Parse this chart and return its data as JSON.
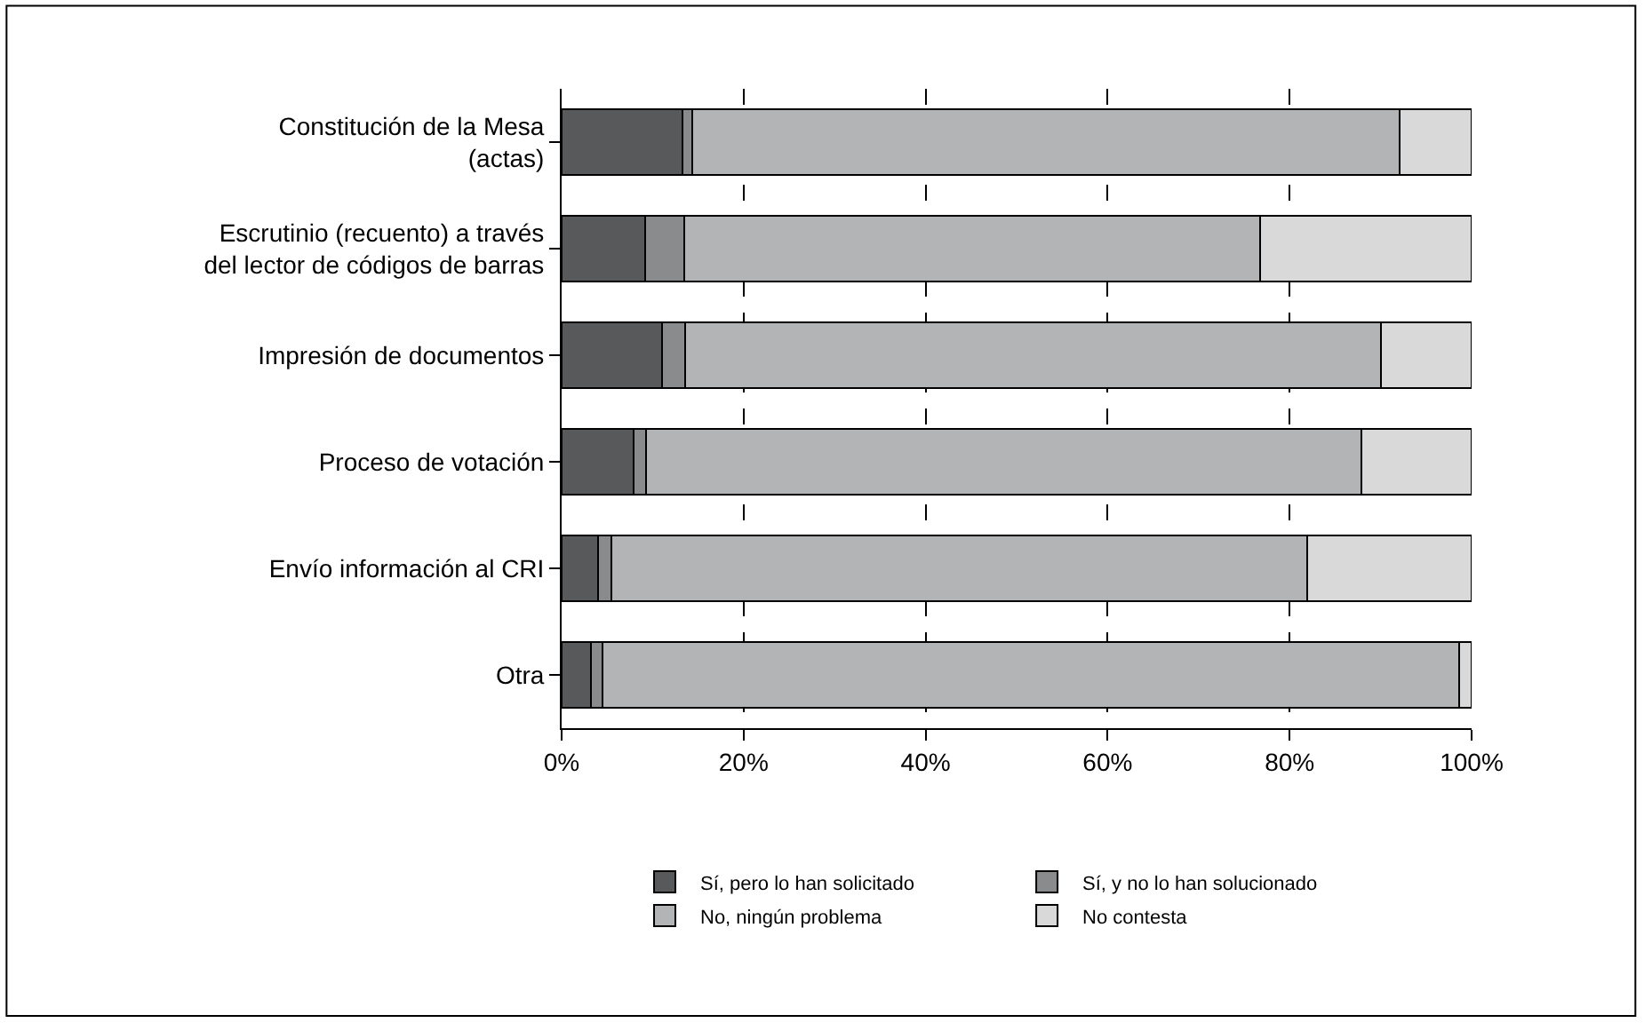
{
  "chart_data": {
    "type": "bar",
    "orientation": "horizontal",
    "stacked": true,
    "categories": [
      "Constitución de la Mesa\n(actas)",
      "Escrutinio (recuento) a través\ndel lector de códigos de barras",
      "Impresión de documentos",
      "Proceso de votación",
      "Envío información al CRI",
      "Otra"
    ],
    "series": [
      {
        "name": "Sí, pero lo han solicitado",
        "color": "#58595b",
        "values": [
          13.3,
          9.2,
          11.0,
          7.9,
          4.0,
          3.2
        ]
      },
      {
        "name": "Sí, y no lo han solucionado",
        "color": "#8a8b8d",
        "values": [
          1.1,
          4.3,
          2.6,
          1.4,
          1.5,
          1.3
        ]
      },
      {
        "name": "No, ningún problema",
        "color": "#b3b4b6",
        "values": [
          77.7,
          63.3,
          76.4,
          78.6,
          76.4,
          94.1
        ]
      },
      {
        "name": "No contesta",
        "color": "#d9d9d9",
        "values": [
          7.9,
          23.2,
          10.0,
          12.1,
          18.1,
          1.4
        ]
      }
    ],
    "xlim": [
      0,
      100
    ],
    "xticks": [
      {
        "value": 0,
        "label": "0%"
      },
      {
        "value": 20,
        "label": "20%"
      },
      {
        "value": 40,
        "label": "40%"
      },
      {
        "value": 60,
        "label": "60%"
      },
      {
        "value": 80,
        "label": "80%"
      },
      {
        "value": 100,
        "label": "100%"
      }
    ],
    "grid": "x",
    "legend": "bottom"
  }
}
